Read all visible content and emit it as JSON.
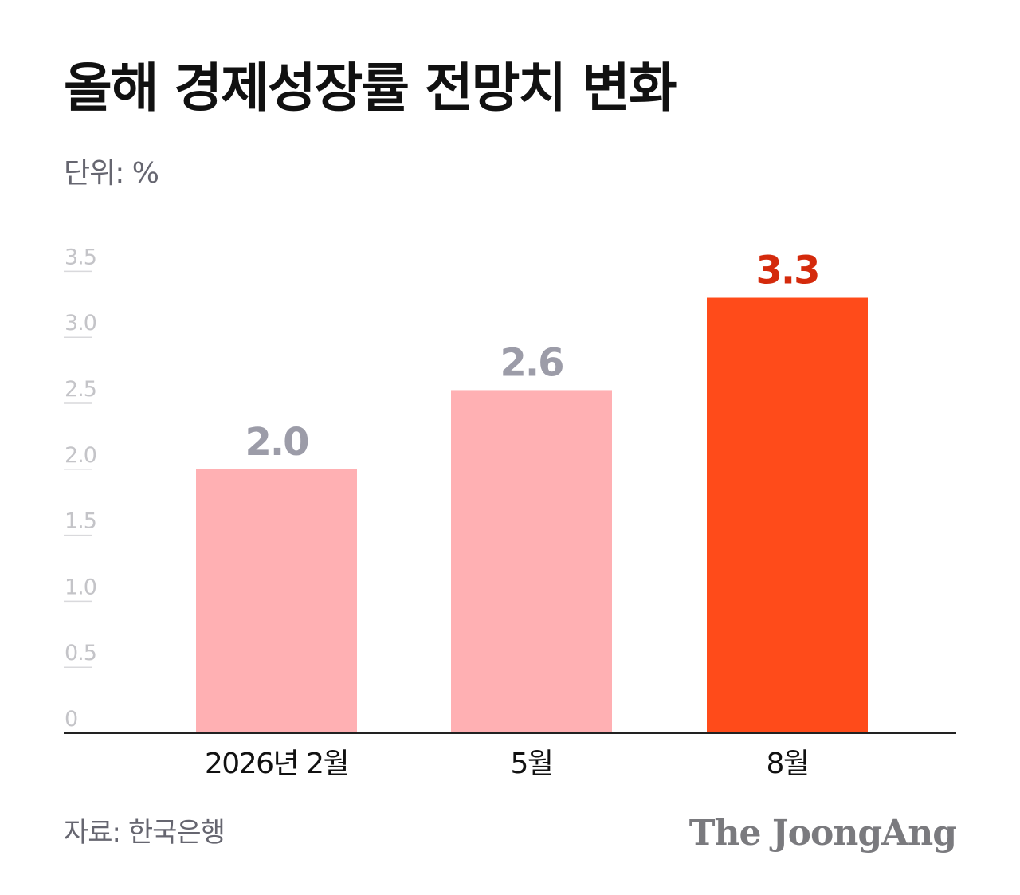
{
  "header": {
    "title": "올해 경제성장률 전망치 변화",
    "unit": "단위: %"
  },
  "footer": {
    "source": "자료: 한국은행",
    "brand": "The JoongAng"
  },
  "colors": {
    "bar_light": "#ffb0b3",
    "bar_highlight": "#ff4b1a",
    "label_gray": "#9c9ca8",
    "label_highlight": "#d42a0c",
    "tick_text": "#c4c4c8",
    "gridline": "#d9d9dc",
    "baseline": "#222222"
  },
  "chart_data": {
    "type": "bar",
    "categories": [
      "2026년 2월",
      "5월",
      "8월"
    ],
    "values": [
      2.0,
      2.6,
      3.3
    ],
    "value_labels": [
      "2.0",
      "2.6",
      "3.3"
    ],
    "highlight_index": 2,
    "ylim": [
      0,
      3.5
    ],
    "yticks": [
      0,
      0.5,
      1.0,
      1.5,
      2.0,
      2.5,
      3.0,
      3.5
    ],
    "ytick_labels": [
      "0",
      "0.5",
      "1.0",
      "1.5",
      "2.0",
      "2.5",
      "3.0",
      "3.5"
    ],
    "grid": false,
    "legend": "none"
  }
}
